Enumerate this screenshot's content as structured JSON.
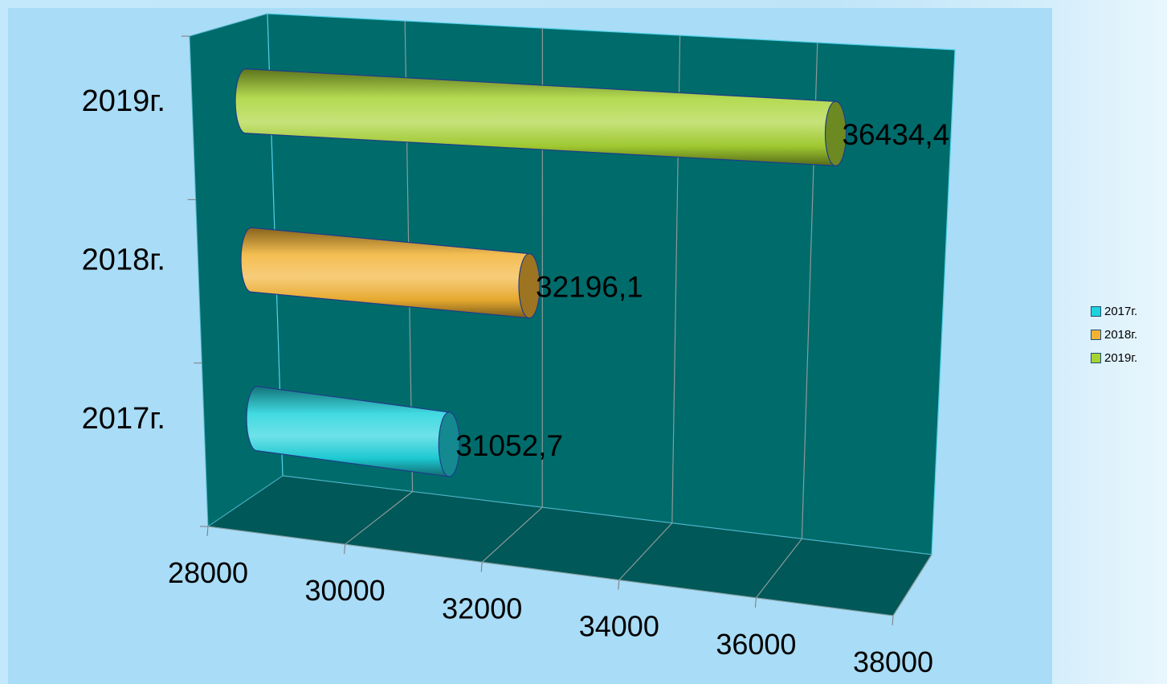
{
  "chart_data": {
    "type": "bar",
    "orientation": "horizontal",
    "style": "3d-cylinder",
    "title": "",
    "xlabel": "",
    "ylabel": "",
    "categories": [
      "2017г.",
      "2018г.",
      "2019г."
    ],
    "values": [
      31052.7,
      32196.1,
      36434.4
    ],
    "value_labels": [
      "31052,7",
      "32196,1",
      "36434,4"
    ],
    "xlim": [
      28000,
      38000
    ],
    "x_ticks": [
      28000,
      30000,
      32000,
      34000,
      36000,
      38000
    ],
    "x_tick_labels": [
      "28000",
      "30000",
      "32000",
      "34000",
      "36000",
      "38000"
    ],
    "grid": true,
    "legend": {
      "position": "right",
      "entries": [
        {
          "label": "2017г.",
          "color": "#1fd3dc"
        },
        {
          "label": "2018г.",
          "color": "#f2b233"
        },
        {
          "label": "2019г.",
          "color": "#a7d332"
        }
      ]
    },
    "colors": {
      "2017г.": "#1fd3dc",
      "2018г.": "#f2b233",
      "2019г.": "#a7d332",
      "walls": "#006b6b",
      "floor": "#005858"
    }
  }
}
